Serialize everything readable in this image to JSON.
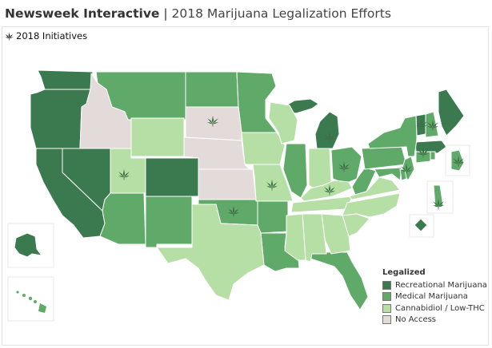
{
  "title": {
    "brand": "Newsweek Interactive",
    "separator": "|",
    "subtitle": "2018 Marijuana Legalization Efforts"
  },
  "initiatives": {
    "icon": "marijuana-leaf-icon",
    "label": "2018 Initiatives"
  },
  "legend": {
    "title": "Legalized",
    "items": [
      {
        "label": "Recreational Marijuana",
        "color": "#3a7a4e"
      },
      {
        "label": "Medical Marijuana",
        "color": "#5faa68"
      },
      {
        "label": "Cannabidiol / Low-THC",
        "color": "#b6dfa5"
      },
      {
        "label": "No Access",
        "color": "#e3dada"
      }
    ]
  },
  "colors": {
    "recreational": "#3a7a4e",
    "medical": "#5faa68",
    "cbd": "#b6dfa5",
    "none": "#e3dada",
    "border": "#ffffff",
    "leaf": "#3f6e47"
  }
}
